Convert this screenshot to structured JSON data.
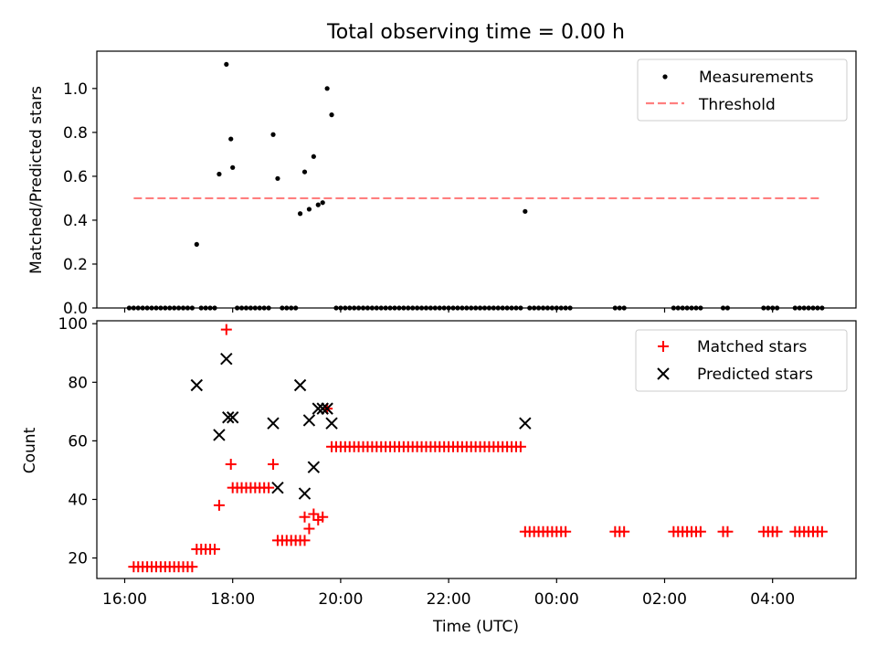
{
  "title": "Total observing time = 0.00 h",
  "colors": {
    "measurements": "#000000",
    "threshold": "#ff7f7f",
    "matched": "#ff0000",
    "predicted": "#000000"
  },
  "chart_data": [
    {
      "type": "scatter",
      "ylabel": "Matched/Predicted stars",
      "ylim": [
        0,
        1.17
      ],
      "yticks": [
        0.0,
        0.2,
        0.4,
        0.6,
        0.8,
        1.0
      ],
      "ytick_labels": [
        "0.0",
        "0.2",
        "0.4",
        "0.6",
        "0.8",
        "1.0"
      ],
      "legend": {
        "placement": "top-right",
        "entries": [
          "Measurements",
          "Threshold"
        ]
      },
      "threshold": {
        "name": "Threshold",
        "value": 0.5,
        "x_range": [
          "16:10",
          "04:55"
        ]
      },
      "series": [
        {
          "name": "Measurements",
          "x": [
            "17:20",
            "17:45",
            "17:53",
            "17:58",
            "18:00",
            "18:45",
            "18:50",
            "19:15",
            "19:20",
            "19:25",
            "19:30",
            "19:35",
            "19:40",
            "19:45",
            "19:50",
            "23:25"
          ],
          "y": [
            0.29,
            0.61,
            1.11,
            0.77,
            0.64,
            0.79,
            0.59,
            0.43,
            0.62,
            0.45,
            0.69,
            0.47,
            0.48,
            1.0,
            0.88,
            0.44
          ]
        }
      ],
      "zero_x_ranges": [
        [
          "16:05",
          "17:15"
        ],
        [
          "17:25",
          "17:40"
        ],
        [
          "18:05",
          "18:42"
        ],
        [
          "18:55",
          "19:10"
        ],
        [
          "19:55",
          "21:10"
        ],
        [
          "21:15",
          "22:00"
        ],
        [
          "22:05",
          "23:20"
        ],
        [
          "23:30",
          "00:15"
        ],
        [
          "01:05",
          "01:15"
        ],
        [
          "02:10",
          "02:40"
        ],
        [
          "03:05",
          "03:10"
        ],
        [
          "03:50",
          "04:05"
        ],
        [
          "04:25",
          "04:55"
        ]
      ]
    },
    {
      "type": "scatter",
      "xlabel": "Time (UTC)",
      "ylabel": "Count",
      "ylim": [
        13,
        101
      ],
      "yticks": [
        20,
        40,
        60,
        80,
        100
      ],
      "ytick_labels": [
        "20",
        "40",
        "60",
        "80",
        "100"
      ],
      "xticks": [
        "16:00",
        "18:00",
        "20:00",
        "22:00",
        "00:00",
        "02:00",
        "04:00"
      ],
      "legend": {
        "placement": "top-right",
        "entries": [
          "Matched stars",
          "Predicted stars"
        ]
      },
      "series": [
        {
          "name": "Matched stars",
          "marker": "+",
          "groups": [
            {
              "y": 17,
              "x_from": "16:10",
              "x_to": "16:55"
            },
            {
              "y": 17,
              "x_from": "17:00",
              "x_to": "17:15"
            },
            {
              "y": 23,
              "x_from": "17:20",
              "x_to": "17:40"
            },
            {
              "y": 44,
              "x_from": "18:00",
              "x_to": "18:40"
            },
            {
              "y": 26,
              "x_from": "18:50",
              "x_to": "19:20"
            },
            {
              "y": 58,
              "x_from": "19:50",
              "x_to": "21:10"
            },
            {
              "y": 58,
              "x_from": "21:15",
              "x_to": "21:55"
            },
            {
              "y": 58,
              "x_from": "22:00",
              "x_to": "23:20"
            },
            {
              "y": 29,
              "x_from": "23:25",
              "x_to": "00:10"
            },
            {
              "y": 29,
              "x_from": "01:05",
              "x_to": "01:15"
            },
            {
              "y": 29,
              "x_from": "02:10",
              "x_to": "02:40"
            },
            {
              "y": 29,
              "x_from": "03:05",
              "x_to": "03:10"
            },
            {
              "y": 29,
              "x_from": "03:50",
              "x_to": "04:05"
            },
            {
              "y": 29,
              "x_from": "04:25",
              "x_to": "04:55"
            }
          ],
          "points": [
            {
              "x": "17:45",
              "y": 38
            },
            {
              "x": "17:53",
              "y": 98
            },
            {
              "x": "17:58",
              "y": 52
            },
            {
              "x": "18:45",
              "y": 52
            },
            {
              "x": "19:20",
              "y": 34
            },
            {
              "x": "19:25",
              "y": 30
            },
            {
              "x": "19:30",
              "y": 35
            },
            {
              "x": "19:35",
              "y": 33
            },
            {
              "x": "19:40",
              "y": 34
            },
            {
              "x": "19:45",
              "y": 71
            }
          ]
        },
        {
          "name": "Predicted stars",
          "marker": "x",
          "x": [
            "17:20",
            "17:45",
            "17:53",
            "17:55",
            "18:00",
            "18:45",
            "18:50",
            "19:15",
            "19:20",
            "19:25",
            "19:30",
            "19:35",
            "19:40",
            "19:45",
            "19:50",
            "23:25"
          ],
          "y": [
            79,
            62,
            88,
            68,
            68,
            66,
            44,
            79,
            42,
            67,
            51,
            71,
            71,
            71,
            66,
            66
          ]
        }
      ]
    }
  ]
}
